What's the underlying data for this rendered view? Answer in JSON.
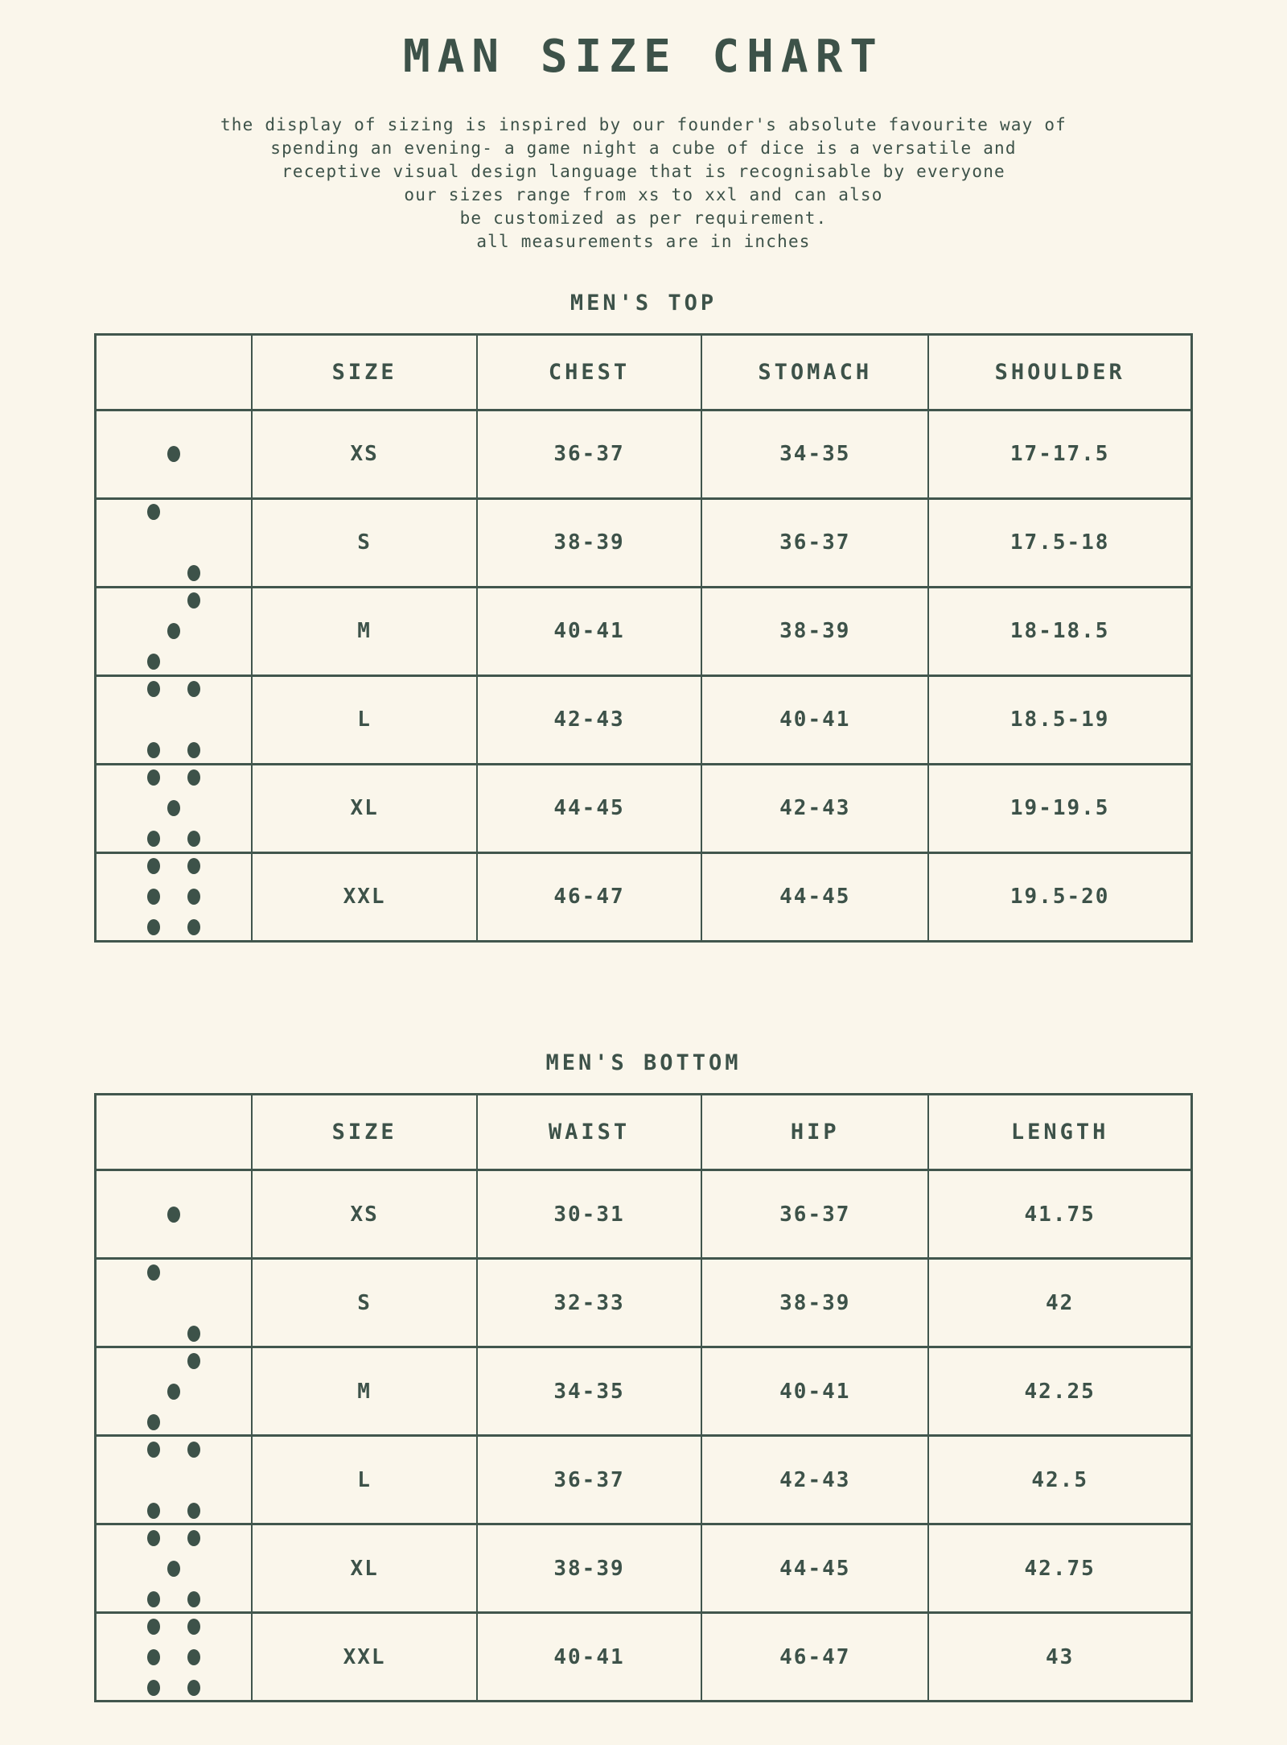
{
  "colors": {
    "background": "#FAF6EB",
    "ink": "#3D5249"
  },
  "page": {
    "title": "MAN SIZE CHART",
    "description_lines": [
      "the display of sizing is inspired by our founder's absolute favourite way of",
      "spending an evening- a game night a cube of dice is a versatile and",
      "receptive visual design language that is recognisable by everyone",
      "our sizes range from xs to xxl and can also",
      "be customized as per requirement.",
      "all measurements are in inches"
    ]
  },
  "tables": [
    {
      "title": "MEN'S TOP",
      "headers": [
        "",
        "SIZE",
        "CHEST",
        "STOMACH",
        "SHOULDER"
      ],
      "rows": [
        {
          "dice": 1,
          "size": "XS",
          "values": [
            "36-37",
            "34-35",
            "17-17.5"
          ]
        },
        {
          "dice": 2,
          "size": "S",
          "values": [
            "38-39",
            "36-37",
            "17.5-18"
          ]
        },
        {
          "dice": 3,
          "size": "M",
          "values": [
            "40-41",
            "38-39",
            "18-18.5"
          ]
        },
        {
          "dice": 4,
          "size": "L",
          "values": [
            "42-43",
            "40-41",
            "18.5-19"
          ]
        },
        {
          "dice": 5,
          "size": "XL",
          "values": [
            "44-45",
            "42-43",
            "19-19.5"
          ]
        },
        {
          "dice": 6,
          "size": "XXL",
          "values": [
            "46-47",
            "44-45",
            "19.5-20"
          ]
        }
      ]
    },
    {
      "title": "MEN'S BOTTOM",
      "headers": [
        "",
        "SIZE",
        "WAIST",
        "HIP",
        "LENGTH"
      ],
      "rows": [
        {
          "dice": 1,
          "size": "XS",
          "values": [
            "30-31",
            "36-37",
            "41.75"
          ]
        },
        {
          "dice": 2,
          "size": "S",
          "values": [
            "32-33",
            "38-39",
            "42"
          ]
        },
        {
          "dice": 3,
          "size": "M",
          "values": [
            "34-35",
            "40-41",
            "42.25"
          ]
        },
        {
          "dice": 4,
          "size": "L",
          "values": [
            "36-37",
            "42-43",
            "42.5"
          ]
        },
        {
          "dice": 5,
          "size": "XL",
          "values": [
            "38-39",
            "44-45",
            "42.75"
          ]
        },
        {
          "dice": 6,
          "size": "XXL",
          "values": [
            "40-41",
            "46-47",
            "43"
          ]
        }
      ]
    }
  ]
}
